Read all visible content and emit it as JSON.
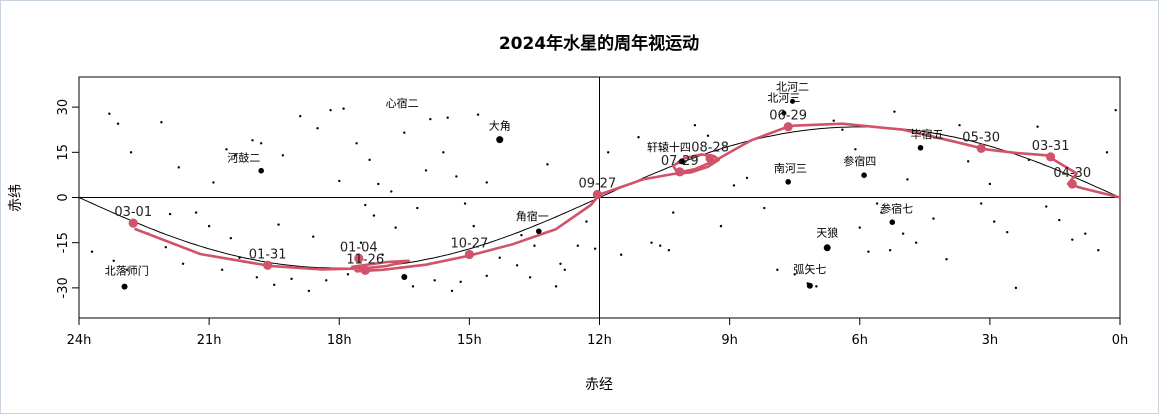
{
  "chart_data": {
    "type": "scatter",
    "title": "2024年水星的周年视运动",
    "xlabel": "赤经",
    "ylabel": "赤纬",
    "xlim": [
      24,
      0
    ],
    "ylim": [
      -40,
      40
    ],
    "x_ticks": [
      {
        "value": 24,
        "label": "24h"
      },
      {
        "value": 21,
        "label": "21h"
      },
      {
        "value": 18,
        "label": "18h"
      },
      {
        "value": 15,
        "label": "15h"
      },
      {
        "value": 12,
        "label": "12h"
      },
      {
        "value": 9,
        "label": "9h"
      },
      {
        "value": 6,
        "label": "6h"
      },
      {
        "value": 3,
        "label": "3h"
      },
      {
        "value": 0,
        "label": "0h"
      }
    ],
    "y_ticks": [
      {
        "value": 30,
        "label": "30"
      },
      {
        "value": 15,
        "label": "15"
      },
      {
        "value": 0,
        "label": "0"
      },
      {
        "value": -15,
        "label": "-15"
      },
      {
        "value": -30,
        "label": "-30"
      }
    ],
    "reference_lines": {
      "ra_h": 12,
      "dec": 0
    },
    "series_colors": {
      "ecliptic": "#000000",
      "mercury": "#d1536a",
      "stars": "#000000"
    },
    "ecliptic": {
      "obliquity_deg": 23.44
    },
    "mercury_path": [
      [
        22.7,
        -10.5
      ],
      [
        21.2,
        -18.8
      ],
      [
        19.6,
        -22.7
      ],
      [
        18.4,
        -23.9
      ],
      [
        17.4,
        -23.5
      ],
      [
        16.9,
        -22.7
      ],
      [
        16.4,
        -21.0
      ],
      [
        16.9,
        -21.4
      ],
      [
        17.7,
        -23.0
      ],
      [
        17.6,
        -24.5
      ],
      [
        17.0,
        -24.0
      ],
      [
        16.0,
        -22.3
      ],
      [
        15.0,
        -19.3
      ],
      [
        14.0,
        -15.5
      ],
      [
        13.0,
        -10.5
      ],
      [
        12.2,
        -2.5
      ],
      [
        12.0,
        1.0
      ],
      [
        11.6,
        3.0
      ],
      [
        11.0,
        6.0
      ],
      [
        10.3,
        7.8
      ],
      [
        9.9,
        8.3
      ],
      [
        9.5,
        10.2
      ],
      [
        9.25,
        12.5
      ],
      [
        9.35,
        13.7
      ],
      [
        9.65,
        14.3
      ],
      [
        10.05,
        13.0
      ],
      [
        10.3,
        10.5
      ],
      [
        10.2,
        8.2
      ],
      [
        9.8,
        9.4
      ],
      [
        9.3,
        12.5
      ],
      [
        8.5,
        19.0
      ],
      [
        7.6,
        23.8
      ],
      [
        6.4,
        24.5
      ],
      [
        5.0,
        22.5
      ],
      [
        3.8,
        18.5
      ],
      [
        3.1,
        16.0
      ],
      [
        2.4,
        14.8
      ],
      [
        1.7,
        14.0
      ],
      [
        1.0,
        8.0
      ],
      [
        1.2,
        4.5
      ],
      [
        0.9,
        3.2
      ],
      [
        0.0,
        0.0
      ]
    ],
    "date_markers": [
      {
        "label": "03-01",
        "ra": 22.75,
        "dec": -8.5
      },
      {
        "label": "01-31",
        "ra": 19.65,
        "dec": -22.5
      },
      {
        "label": "01-04",
        "ra": 17.55,
        "dec": -20.2
      },
      {
        "label": "11-26",
        "ra": 17.4,
        "dec": -24.2
      },
      {
        "label": "10-27",
        "ra": 15.0,
        "dec": -18.9
      },
      {
        "label": "09-27",
        "ra": 12.05,
        "dec": 1.0
      },
      {
        "label": "07-29",
        "ra": 10.15,
        "dec": 8.5
      },
      {
        "label": "08-28",
        "ra": 9.45,
        "dec": 13.0
      },
      {
        "label": "06-29",
        "ra": 7.65,
        "dec": 23.5
      },
      {
        "label": "05-30",
        "ra": 3.2,
        "dec": 16.3
      },
      {
        "label": "03-31",
        "ra": 1.6,
        "dec": 13.5
      },
      {
        "label": "04-30",
        "ra": 1.1,
        "dec": 4.5
      }
    ],
    "labeled_stars": [
      {
        "name": "心宿二",
        "ra": 16.5,
        "dec": -26.4,
        "size": 3.0,
        "lx": 16.55,
        "ly": 30.0
      },
      {
        "name": "大角",
        "ra": 14.3,
        "dec": 19.2,
        "size": 3.5,
        "lx": 14.3,
        "ly": 22.5
      },
      {
        "name": "河鼓二",
        "ra": 19.8,
        "dec": 8.9,
        "size": 2.8,
        "lx": 20.2,
        "ly": 12.0
      },
      {
        "name": "角宿一",
        "ra": 13.4,
        "dec": -11.2,
        "size": 2.8,
        "lx": 13.55,
        "ly": -7.5
      },
      {
        "name": "北落师门",
        "ra": 22.95,
        "dec": -29.6,
        "size": 3.0,
        "lx": 22.9,
        "ly": -25.5
      },
      {
        "name": "轩辕十四",
        "ra": 10.1,
        "dec": 12.0,
        "size": 3.0,
        "lx": 10.4,
        "ly": 15.5
      },
      {
        "name": "北河二",
        "ra": 7.55,
        "dec": 31.9,
        "size": 2.5,
        "lx": 7.55,
        "ly": 35.5
      },
      {
        "name": "北河三",
        "ra": 7.75,
        "dec": 28.0,
        "size": 2.5,
        "lx": 7.75,
        "ly": 31.8
      },
      {
        "name": "南河三",
        "ra": 7.65,
        "dec": 5.2,
        "size": 2.8,
        "lx": 7.6,
        "ly": 8.5
      },
      {
        "name": "参宿四",
        "ra": 5.9,
        "dec": 7.4,
        "size": 2.8,
        "lx": 6.0,
        "ly": 10.8
      },
      {
        "name": "毕宿五",
        "ra": 4.6,
        "dec": 16.5,
        "size": 2.8,
        "lx": 4.45,
        "ly": 19.8
      },
      {
        "name": "参宿七",
        "ra": 5.25,
        "dec": -8.2,
        "size": 2.8,
        "lx": 5.15,
        "ly": -4.9
      },
      {
        "name": "天狼",
        "ra": 6.75,
        "dec": -16.7,
        "size": 3.5,
        "lx": 6.75,
        "ly": -13.0
      },
      {
        "name": "弧矢七",
        "ra": 7.15,
        "dec": -29.3,
        "size": 3.0,
        "lx": 7.15,
        "ly": -25.0
      }
    ],
    "minor_stars": [
      [
        23.3,
        27.8
      ],
      [
        23.1,
        24.5
      ],
      [
        22.8,
        15.0
      ],
      [
        22.1,
        25.0
      ],
      [
        21.7,
        10.0
      ],
      [
        20.9,
        5.0
      ],
      [
        20.6,
        16.0
      ],
      [
        20.4,
        14.0
      ],
      [
        20.0,
        19.0
      ],
      [
        19.8,
        18.0
      ],
      [
        19.3,
        14.0
      ],
      [
        18.9,
        27.0
      ],
      [
        18.5,
        23.0
      ],
      [
        18.2,
        29.0
      ],
      [
        17.9,
        29.5
      ],
      [
        17.6,
        18.0
      ],
      [
        17.3,
        12.5
      ],
      [
        17.1,
        4.5
      ],
      [
        16.8,
        2.0
      ],
      [
        16.5,
        21.5
      ],
      [
        16.2,
        -3.5
      ],
      [
        15.9,
        26.0
      ],
      [
        15.5,
        26.5
      ],
      [
        15.6,
        15.0
      ],
      [
        15.1,
        -2.0
      ],
      [
        14.8,
        27.5
      ],
      [
        14.9,
        -9.5
      ],
      [
        13.8,
        -12.5
      ],
      [
        13.2,
        11.0
      ],
      [
        12.9,
        -22.0
      ],
      [
        12.5,
        -16.0
      ],
      [
        12.3,
        -8.0
      ],
      [
        12.1,
        -17.0
      ],
      [
        11.8,
        15.0
      ],
      [
        11.5,
        -19.0
      ],
      [
        11.1,
        20.0
      ],
      [
        10.8,
        -15.0
      ],
      [
        10.6,
        -16.0
      ],
      [
        10.4,
        -17.5
      ],
      [
        10.3,
        -5.0
      ],
      [
        9.8,
        24.0
      ],
      [
        9.5,
        20.5
      ],
      [
        9.2,
        -9.5
      ],
      [
        8.9,
        4.0
      ],
      [
        8.6,
        6.5
      ],
      [
        8.2,
        -3.5
      ],
      [
        7.9,
        -24.0
      ],
      [
        7.5,
        -25.5
      ],
      [
        7.2,
        -28.5
      ],
      [
        7.0,
        -29.5
      ],
      [
        6.6,
        25.5
      ],
      [
        6.4,
        22.5
      ],
      [
        6.1,
        16.0
      ],
      [
        6.0,
        -10.0
      ],
      [
        5.8,
        -18.0
      ],
      [
        5.6,
        -2.0
      ],
      [
        5.5,
        -5.0
      ],
      [
        5.3,
        -17.5
      ],
      [
        5.2,
        28.5
      ],
      [
        5.0,
        -12.0
      ],
      [
        4.9,
        6.0
      ],
      [
        4.7,
        -15.0
      ],
      [
        4.3,
        -7.0
      ],
      [
        4.0,
        -20.5
      ],
      [
        3.7,
        24.0
      ],
      [
        3.5,
        12.0
      ],
      [
        3.2,
        -2.0
      ],
      [
        3.0,
        4.5
      ],
      [
        2.9,
        -8.0
      ],
      [
        2.6,
        -11.5
      ],
      [
        2.4,
        -30.0
      ],
      [
        2.1,
        12.5
      ],
      [
        1.9,
        23.5
      ],
      [
        1.7,
        -3.0
      ],
      [
        1.4,
        -7.5
      ],
      [
        1.1,
        -14.0
      ],
      [
        0.8,
        -12.0
      ],
      [
        0.5,
        -17.5
      ],
      [
        0.3,
        15.0
      ],
      [
        0.1,
        29.0
      ],
      [
        23.7,
        -18.0
      ],
      [
        23.2,
        -21.0
      ],
      [
        22.9,
        -24.0
      ],
      [
        22.4,
        -12.0
      ],
      [
        22.0,
        -16.5
      ],
      [
        21.6,
        -22.0
      ],
      [
        21.3,
        -5.0
      ],
      [
        21.0,
        -9.5
      ],
      [
        20.7,
        -24.0
      ],
      [
        20.3,
        -20.0
      ],
      [
        19.9,
        -26.5
      ],
      [
        19.5,
        -29.0
      ],
      [
        19.1,
        -27.0
      ],
      [
        18.7,
        -31.0
      ],
      [
        18.3,
        -27.5
      ],
      [
        17.8,
        -25.5
      ],
      [
        17.5,
        -15.0
      ],
      [
        17.0,
        -19.0
      ],
      [
        16.7,
        -10.0
      ],
      [
        16.3,
        -29.5
      ],
      [
        15.8,
        -27.5
      ],
      [
        15.4,
        -31.0
      ],
      [
        15.2,
        -28.0
      ],
      [
        14.6,
        -26.0
      ],
      [
        14.3,
        -20.0
      ],
      [
        13.9,
        -22.5
      ],
      [
        13.6,
        -26.5
      ],
      [
        13.0,
        -29.5
      ],
      [
        12.8,
        -24.0
      ],
      [
        16.0,
        9.0
      ],
      [
        17.2,
        -6.0
      ],
      [
        18.6,
        -13.0
      ],
      [
        19.4,
        -9.0
      ],
      [
        20.5,
        -13.5
      ],
      [
        21.9,
        -5.5
      ],
      [
        18.0,
        5.5
      ],
      [
        17.4,
        -2.5
      ],
      [
        15.3,
        7.0
      ],
      [
        14.6,
        5.0
      ],
      [
        13.5,
        -16.0
      ]
    ]
  }
}
